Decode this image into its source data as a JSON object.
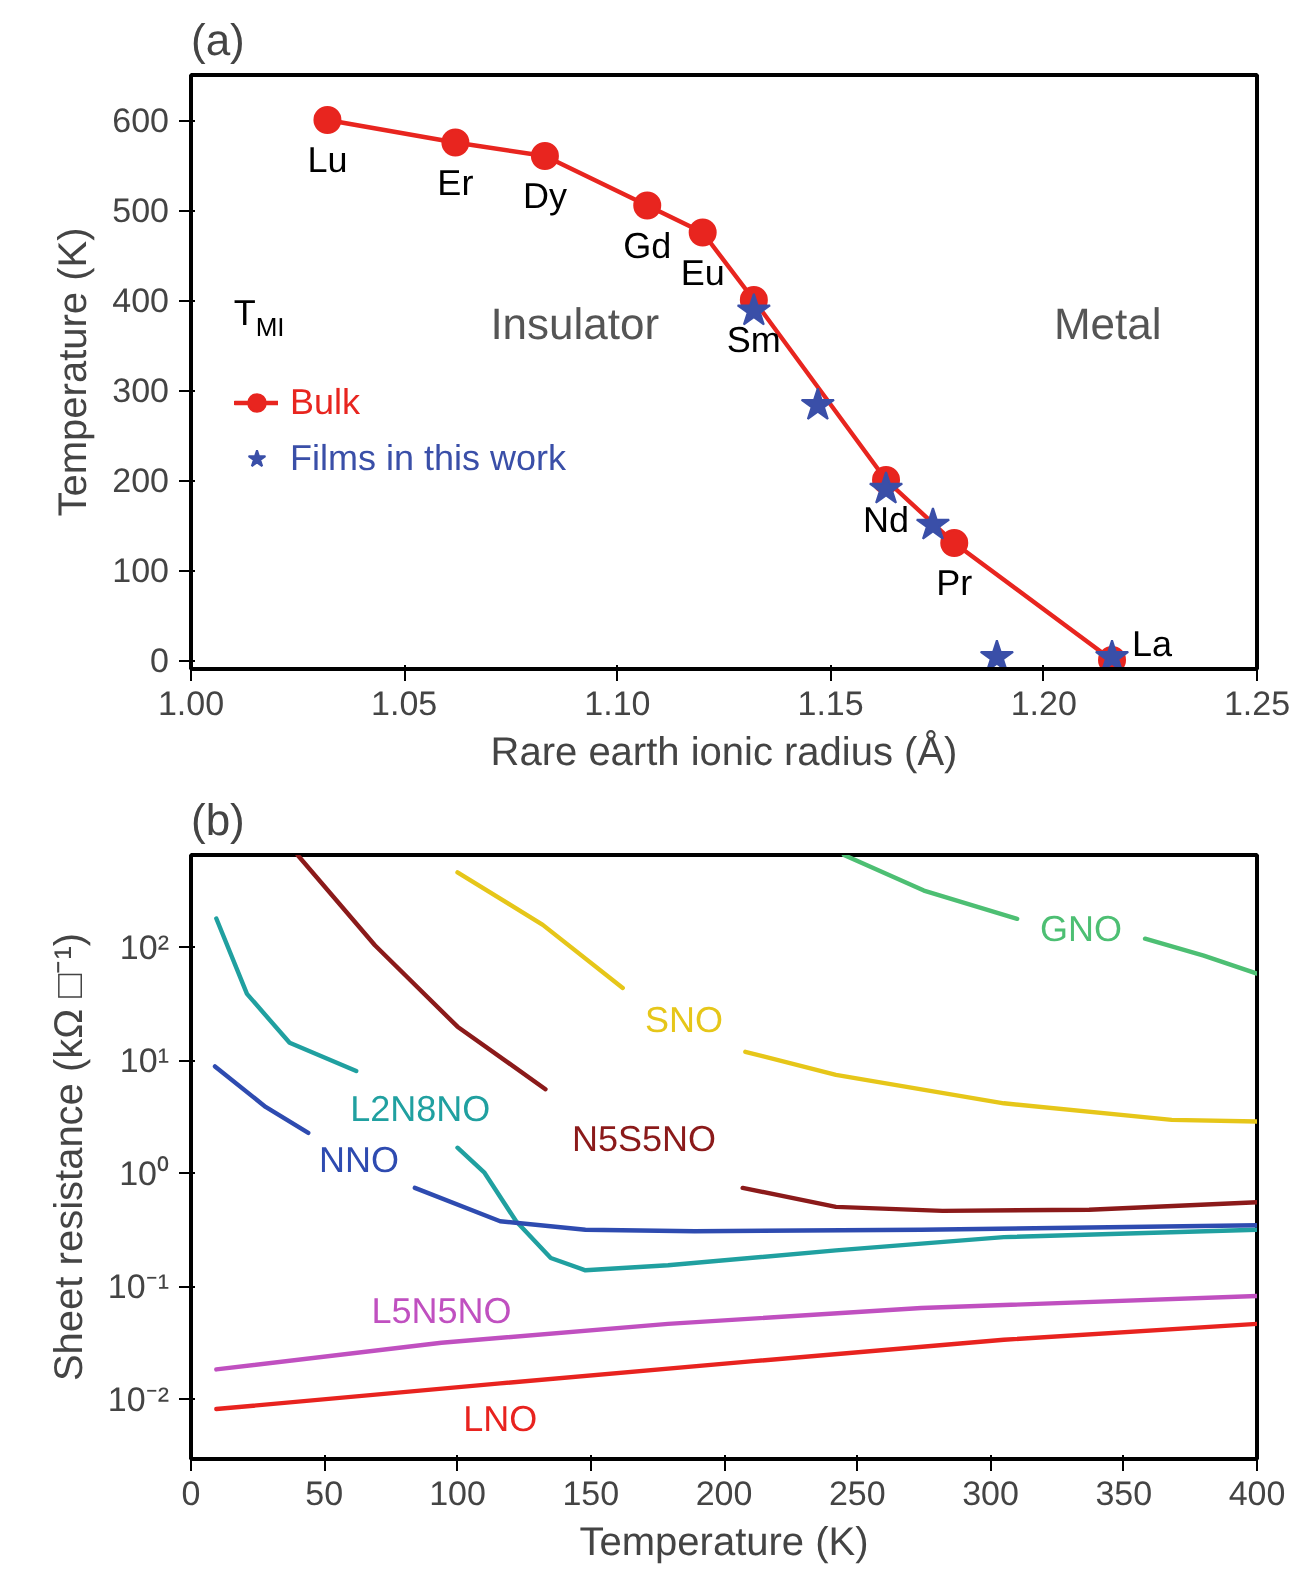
{
  "chart_data": [
    {
      "type": "line",
      "title": "(a)",
      "xlabel": "Rare earth ionic radius (Å)",
      "ylabel": "Temperature (K)",
      "legend_title": "T$_{MI}$",
      "xlim": [
        1.0,
        1.25
      ],
      "ylim": [
        -10,
        650
      ],
      "xticks": [
        {
          "value": 1.0,
          "label": "1.00"
        },
        1.05,
        {
          "value": 1.1,
          "label": "1.10"
        },
        1.15,
        {
          "value": 1.2,
          "label": "1.20"
        },
        1.25
      ],
      "yticks": [
        0,
        100,
        200,
        300,
        400,
        500,
        600
      ],
      "grid": false,
      "legend": "left",
      "series": [
        {
          "name": "Bulk",
          "type": "line",
          "marker": "circle",
          "color": "#e8251f",
          "x": [
            1.032,
            1.062,
            1.083,
            1.107,
            1.12,
            1.132,
            1.163,
            1.179,
            1.216
          ],
          "values": [
            600,
            575,
            560,
            505,
            475,
            400,
            200,
            130,
            0
          ]
        },
        {
          "name": "Films in this work",
          "type": "scatter",
          "marker": "star",
          "color": "#3a4fa8",
          "x": [
            1.132,
            1.147,
            1.163,
            1.174,
            1.189,
            1.216
          ],
          "values": [
            388,
            283,
            190,
            150,
            3,
            3
          ]
        }
      ],
      "annotations": [
        {
          "text": "Lu",
          "x": 1.032,
          "y": 600
        },
        {
          "text": "Er",
          "x": 1.062,
          "y": 575
        },
        {
          "text": "Dy",
          "x": 1.083,
          "y": 560
        },
        {
          "text": "Gd",
          "x": 1.107,
          "y": 505
        },
        {
          "text": "Eu",
          "x": 1.12,
          "y": 475
        },
        {
          "text": "Sm",
          "x": 1.132,
          "y": 400
        },
        {
          "text": "Nd",
          "x": 1.163,
          "y": 200
        },
        {
          "text": "Pr",
          "x": 1.179,
          "y": 130
        },
        {
          "text": "La",
          "x": 1.216,
          "y": 0
        },
        "Insulator",
        "Metal"
      ]
    },
    {
      "type": "line",
      "title": "(b)",
      "xlabel": "Temperature (K)",
      "ylabel": "Sheet resistance (kΩ □⁻¹)",
      "log": "y",
      "xlim": [
        0,
        400
      ],
      "ylim": [
        0.003,
        660
      ],
      "xticks": [
        0,
        50,
        100,
        150,
        200,
        250,
        300,
        350,
        400
      ],
      "yticks": [
        {
          "value": 0.01,
          "label": "10⁻²"
        },
        {
          "value": 0.1,
          "label": "10⁻¹"
        },
        {
          "value": 1,
          "label": "10⁰"
        },
        {
          "value": 10,
          "label": "10¹"
        },
        {
          "value": 100,
          "label": "10²"
        }
      ],
      "grid": false,
      "series": [
        {
          "name": "GNO",
          "color": "#4dbf73",
          "x": [
            245,
            275,
            310,
            334,
            358,
            380,
            400
          ],
          "values": [
            660,
            320,
            180,
            null,
            120,
            85,
            59
          ]
        },
        {
          "name": "SNO",
          "color": "#e6c619",
          "x": [
            100,
            132,
            162,
            185,
            208,
            242,
            305,
            368,
            400
          ],
          "values": [
            464,
            159,
            44,
            null,
            12,
            7.5,
            4.2,
            3.0,
            2.9
          ]
        },
        {
          "name": "N5S5NO",
          "color": "#8b1a1a",
          "x": [
            40,
            69,
            100,
            133,
            170,
            207,
            242,
            282,
            337,
            400
          ],
          "values": [
            660,
            105,
            20,
            5.6,
            null,
            0.75,
            0.51,
            0.47,
            0.48,
            0.56
          ]
        },
        {
          "name": "L2N8NO",
          "color": "#20a0a0",
          "x": [
            9.5,
            21,
            37,
            62,
            86,
            100,
            110,
            122,
            135,
            148,
            179,
            242,
            305,
            400
          ],
          "values": [
            181,
            39,
            14.4,
            8.1,
            null,
            1.7,
            1.03,
            0.38,
            0.18,
            0.14,
            0.155,
            0.21,
            0.275,
            0.32
          ]
        },
        {
          "name": "NNO",
          "color": "#2e4bb0",
          "x": [
            9,
            28,
            44,
            63,
            84,
            116,
            148,
            189,
            274,
            400
          ],
          "values": [
            8.9,
            3.9,
            2.3,
            null,
            0.75,
            0.38,
            0.32,
            0.31,
            0.32,
            0.35
          ]
        },
        {
          "name": "L5N5NO",
          "color": "#c050c0",
          "x": [
            9.5,
            94,
            179,
            274,
            400
          ],
          "values": [
            0.0186,
            0.032,
            0.047,
            0.065,
            0.083
          ]
        },
        {
          "name": "LNO",
          "color": "#e8231f",
          "x": [
            9.5,
            116,
            211,
            305,
            400
          ],
          "values": [
            0.0083,
            0.014,
            0.022,
            0.034,
            0.047
          ]
        }
      ]
    }
  ]
}
